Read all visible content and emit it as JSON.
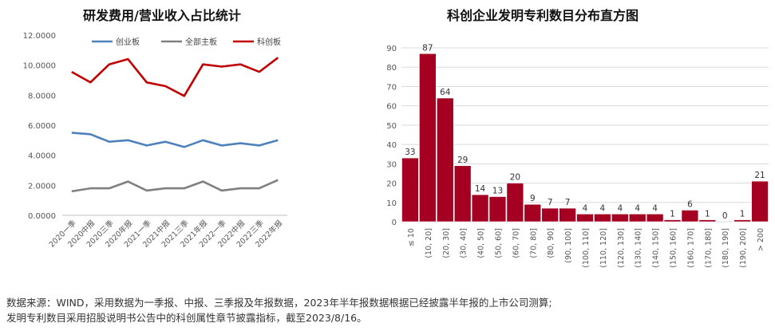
{
  "left_title": "研发费用/营业收入占比统计",
  "right_title": "科创企业发明专利数目分布直方图",
  "footnote": {
    "line1": "数据来源：WIND，采用数据为一季报、中报、三季报及年报数据，2023年半年报数据根据已经披露半年报的上市公司测算;",
    "line2": "发明专利数目采用招股说明书公告中的科创属性章节披露指标，截至2023/8/16。"
  },
  "colors": {
    "chuangye": "#4f81bd",
    "quanbu": "#808080",
    "kechuang": "#c00000",
    "hist_bar": "#a50021"
  },
  "chart_data": [
    {
      "type": "line",
      "title": "研发费用/营业收入占比统计",
      "categories": [
        "2020一季",
        "2020中报",
        "2020三季",
        "2020年报",
        "2021一季",
        "2021中报",
        "2021三季",
        "2021年报",
        "2022一季",
        "2022中报",
        "2022三季",
        "2022年报"
      ],
      "series": [
        {
          "name": "创业板",
          "values": [
            5.5,
            5.4,
            4.9,
            5.0,
            4.65,
            4.9,
            4.55,
            5.0,
            4.65,
            4.8,
            4.65,
            5.0
          ]
        },
        {
          "name": "全部主板",
          "values": [
            1.6,
            1.8,
            1.8,
            2.25,
            1.65,
            1.8,
            1.8,
            2.25,
            1.65,
            1.8,
            1.8,
            2.35
          ]
        },
        {
          "name": "科创板",
          "values": [
            9.55,
            8.85,
            10.05,
            10.4,
            8.85,
            8.6,
            7.95,
            10.05,
            9.9,
            10.05,
            9.55,
            10.5
          ]
        }
      ],
      "y_ticks": [
        "0.0000",
        "2.0000",
        "4.0000",
        "6.0000",
        "8.0000",
        "10.0000",
        "12.0000"
      ],
      "ylim": [
        0,
        12
      ],
      "legend": "top",
      "grid": false
    },
    {
      "type": "bar",
      "title": "科创企业发明专利数目分布直方图",
      "categories": [
        "≤ 10",
        "(10, 20]",
        "(20, 30]",
        "(30, 40]",
        "(40, 50]",
        "(50, 60]",
        "(60, 70]",
        "(70, 80]",
        "(80, 90]",
        "(90, 100]",
        "(100, 110]",
        "(110, 120]",
        "(120, 130]",
        "(130, 140]",
        "(140, 150]",
        "(150, 160]",
        "(160, 170]",
        "(170, 180]",
        "(180, 190]",
        "(190, 200]",
        "> 200"
      ],
      "values": [
        33,
        87,
        64,
        29,
        14,
        13,
        20,
        9,
        7,
        7,
        4,
        4,
        4,
        4,
        4,
        1,
        6,
        1,
        0,
        1,
        21
      ],
      "y_ticks": [
        "0",
        "10",
        "20",
        "30",
        "40",
        "50",
        "60",
        "70",
        "80",
        "90"
      ],
      "ylim": [
        0,
        90
      ],
      "grid": true
    }
  ]
}
